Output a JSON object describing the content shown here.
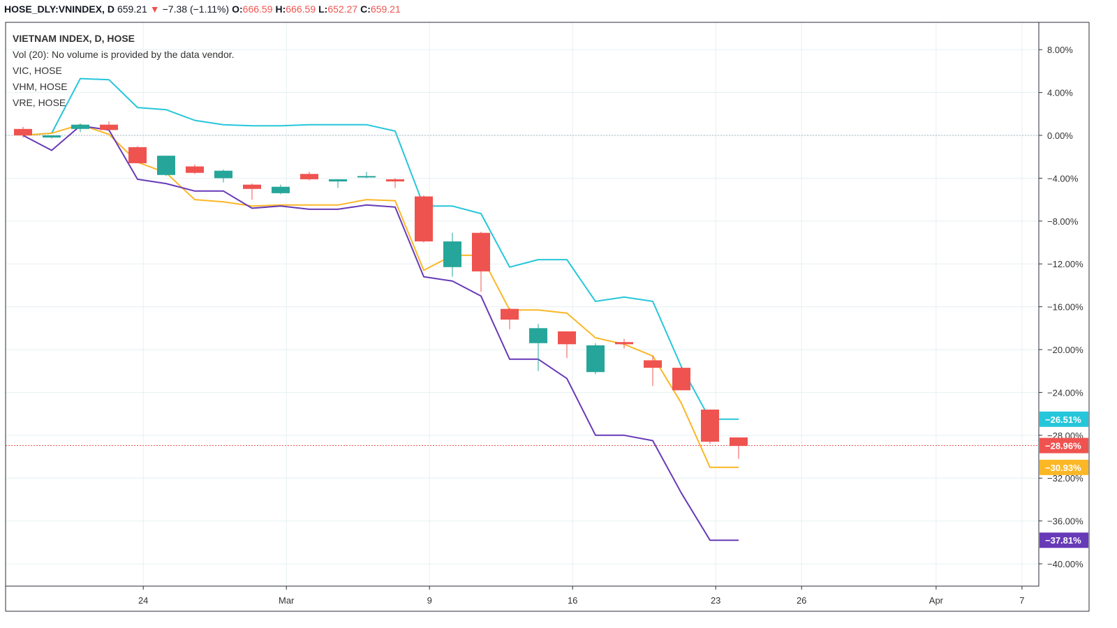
{
  "header": {
    "symbol": "HOSE_DLY:VNINDEX, D",
    "last": "659.21",
    "change": "−7.38 (−1.11%)",
    "o_label": "O:",
    "o_value": "666.59",
    "h_label": "H:",
    "h_value": "666.59",
    "l_label": "L:",
    "l_value": "652.27",
    "c_label": "C:",
    "c_value": "659.21"
  },
  "legend": {
    "title": "VIETNAM INDEX, D, HOSE",
    "vol": "Vol (20): No volume is provided by the data vendor.",
    "s1": "VIC, HOSE",
    "s2": "VHM, HOSE",
    "s3": "VRE, HOSE"
  },
  "chart_data": {
    "type": "line",
    "y_unit": "%",
    "ylim": [
      -42,
      10
    ],
    "y_ticks": [
      "8.00%",
      "4.00%",
      "0.00%",
      "−4.00%",
      "−8.00%",
      "−12.00%",
      "−16.00%",
      "−20.00%",
      "−24.00%",
      "−28.00%",
      "−32.00%",
      "−36.00%",
      "−40.00%"
    ],
    "y_tick_values": [
      8,
      4,
      0,
      -4,
      -8,
      -12,
      -16,
      -20,
      -24,
      -28,
      -32,
      -36,
      -40
    ],
    "x_ticks": [
      {
        "label": "24",
        "slot": 4.2
      },
      {
        "label": "Mar",
        "slot": 9.2
      },
      {
        "label": "9",
        "slot": 14.2
      },
      {
        "label": "16",
        "slot": 19.2
      },
      {
        "label": "23",
        "slot": 24.2
      },
      {
        "label": "26",
        "slot": 27.2
      },
      {
        "label": "Apr",
        "slot": 31.9
      },
      {
        "label": "7",
        "slot": 34.9
      }
    ],
    "candles": [
      {
        "o": 0.6,
        "h": 0.8,
        "l": -0.2,
        "c": 0.0
      },
      {
        "o": -0.2,
        "h": 0.0,
        "l": -0.3,
        "c": 0.0
      },
      {
        "o": 0.6,
        "h": 1.1,
        "l": 0.3,
        "c": 1.0
      },
      {
        "o": 1.0,
        "h": 1.3,
        "l": 0.5,
        "c": 0.5
      },
      {
        "o": -1.1,
        "h": -1.0,
        "l": -2.6,
        "c": -2.6
      },
      {
        "o": -3.7,
        "h": -1.9,
        "l": -3.8,
        "c": -1.9
      },
      {
        "o": -2.9,
        "h": -2.7,
        "l": -3.6,
        "c": -3.5
      },
      {
        "o": -4.0,
        "h": -3.2,
        "l": -4.4,
        "c": -3.3
      },
      {
        "o": -4.6,
        "h": -4.5,
        "l": -6.0,
        "c": -5.0
      },
      {
        "o": -5.4,
        "h": -4.6,
        "l": -5.5,
        "c": -4.8
      },
      {
        "o": -3.6,
        "h": -3.4,
        "l": -4.2,
        "c": -4.1
      },
      {
        "o": -4.3,
        "h": -4.1,
        "l": -4.9,
        "c": -4.1
      },
      {
        "o": -3.9,
        "h": -3.4,
        "l": -4.0,
        "c": -3.8
      },
      {
        "o": -4.1,
        "h": -4.0,
        "l": -4.9,
        "c": -4.3
      },
      {
        "o": -5.7,
        "h": -5.6,
        "l": -10.0,
        "c": -9.9
      },
      {
        "o": -12.3,
        "h": -9.1,
        "l": -13.2,
        "c": -9.9
      },
      {
        "o": -9.1,
        "h": -9.0,
        "l": -14.6,
        "c": -12.7
      },
      {
        "o": -16.2,
        "h": -16.1,
        "l": -18.1,
        "c": -17.2
      },
      {
        "o": -19.4,
        "h": -17.6,
        "l": -22.0,
        "c": -18.0
      },
      {
        "o": -18.3,
        "h": -18.3,
        "l": -20.8,
        "c": -19.5
      },
      {
        "o": -22.1,
        "h": -19.4,
        "l": -22.3,
        "c": -19.6
      },
      {
        "o": -19.3,
        "h": -19.0,
        "l": -19.9,
        "c": -19.5
      },
      {
        "o": -21.0,
        "h": -20.6,
        "l": -23.4,
        "c": -21.7
      },
      {
        "o": -21.7,
        "h": -21.6,
        "l": -23.8,
        "c": -23.8
      },
      {
        "o": -25.6,
        "h": -25.6,
        "l": -28.8,
        "c": -28.6
      },
      {
        "o": -28.2,
        "h": -28.2,
        "l": -30.2,
        "c": -29.0
      }
    ],
    "series": [
      {
        "name": "VIC, HOSE",
        "color": "#26c6da",
        "last_label": "−26.51%",
        "values": [
          0.0,
          0.2,
          5.3,
          5.2,
          2.6,
          2.4,
          1.4,
          1.0,
          0.9,
          0.9,
          1.0,
          1.0,
          1.0,
          0.4,
          -6.6,
          -6.6,
          -7.3,
          -12.3,
          -11.6,
          -11.6,
          -15.5,
          -15.1,
          -15.5,
          -21.6,
          -26.5,
          -26.5
        ]
      },
      {
        "name": "VHM, HOSE",
        "color": "#fbb726",
        "last_label": "−30.93%",
        "values": [
          0.0,
          0.2,
          1.0,
          0.1,
          -2.5,
          -3.5,
          -6.0,
          -6.2,
          -6.6,
          -6.5,
          -6.5,
          -6.5,
          -6.0,
          -6.1,
          -12.6,
          -11.2,
          -11.2,
          -16.3,
          -16.3,
          -16.6,
          -18.9,
          -19.5,
          -20.6,
          -25.0,
          -31.0,
          -31.0
        ]
      },
      {
        "name": "VRE, HOSE",
        "color": "#673ab7",
        "last_label": "−37.81%",
        "values": [
          0.0,
          -1.4,
          0.9,
          0.5,
          -4.1,
          -4.5,
          -5.2,
          -5.2,
          -6.8,
          -6.6,
          -6.9,
          -6.9,
          -6.5,
          -6.7,
          -13.2,
          -13.6,
          -15.0,
          -20.9,
          -20.9,
          -22.7,
          -28.0,
          -28.0,
          -28.5,
          -33.4,
          -37.8,
          -37.8
        ]
      }
    ],
    "last_price_label": "−28.96%",
    "last_price_value": -28.96,
    "colors": {
      "up": "#26a69a",
      "down": "#ef5350",
      "grid": "#e6f0f3",
      "zero": "#b2b5be"
    }
  }
}
